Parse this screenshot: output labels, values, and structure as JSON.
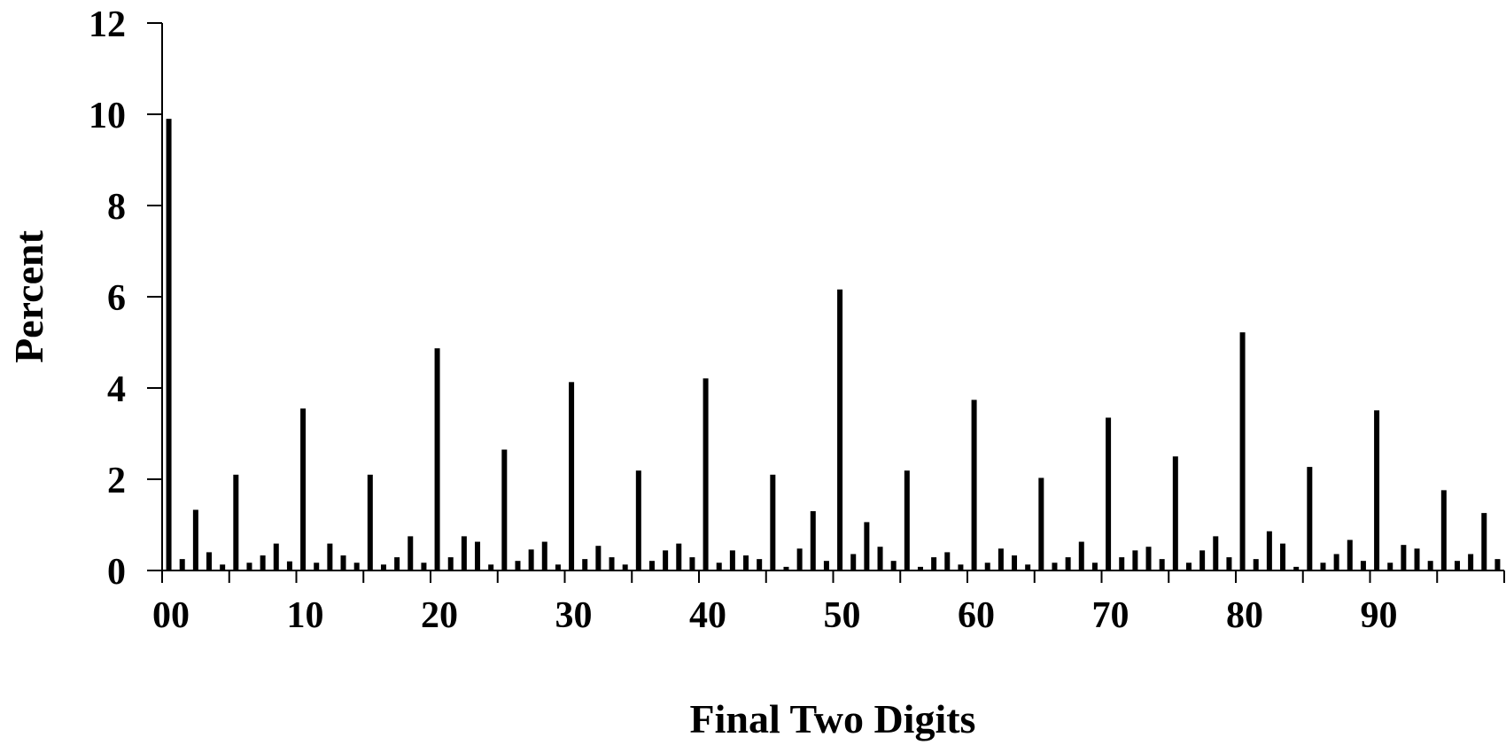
{
  "chart_data": {
    "type": "bar",
    "title": "",
    "xlabel": "Final Two Digits",
    "ylabel": "Percent",
    "ylim": [
      0,
      12
    ],
    "yticks": [
      "0",
      "2",
      "4",
      "6",
      "8",
      "10",
      "12"
    ],
    "xticks": [
      "00",
      "10",
      "20",
      "30",
      "40",
      "50",
      "60",
      "70",
      "80",
      "90"
    ],
    "grid": false,
    "bar_color": "#000000",
    "categories": [
      "00",
      "01",
      "02",
      "03",
      "04",
      "05",
      "06",
      "07",
      "08",
      "09",
      "10",
      "11",
      "12",
      "13",
      "14",
      "15",
      "16",
      "17",
      "18",
      "19",
      "20",
      "21",
      "22",
      "23",
      "24",
      "25",
      "26",
      "27",
      "28",
      "29",
      "30",
      "31",
      "32",
      "33",
      "34",
      "35",
      "36",
      "37",
      "38",
      "39",
      "40",
      "41",
      "42",
      "43",
      "44",
      "45",
      "46",
      "47",
      "48",
      "49",
      "50",
      "51",
      "52",
      "53",
      "54",
      "55",
      "56",
      "57",
      "58",
      "59",
      "60",
      "61",
      "62",
      "63",
      "64",
      "65",
      "66",
      "67",
      "68",
      "69",
      "70",
      "71",
      "72",
      "73",
      "74",
      "75",
      "76",
      "77",
      "78",
      "79",
      "80",
      "81",
      "82",
      "83",
      "84",
      "85",
      "86",
      "87",
      "88",
      "89",
      "90",
      "91",
      "92",
      "93",
      "94",
      "95",
      "96",
      "97",
      "98",
      "99"
    ],
    "values": [
      9.9,
      0.25,
      1.33,
      0.4,
      0.13,
      2.1,
      0.17,
      0.33,
      0.59,
      0.2,
      3.55,
      0.17,
      0.59,
      0.33,
      0.17,
      2.1,
      0.13,
      0.29,
      0.75,
      0.17,
      4.87,
      0.29,
      0.75,
      0.63,
      0.13,
      2.65,
      0.21,
      0.46,
      0.63,
      0.13,
      4.13,
      0.25,
      0.54,
      0.29,
      0.13,
      2.19,
      0.21,
      0.44,
      0.59,
      0.29,
      4.21,
      0.17,
      0.44,
      0.33,
      0.25,
      2.1,
      0.08,
      0.48,
      1.3,
      0.21,
      6.16,
      0.36,
      1.06,
      0.52,
      0.21,
      2.19,
      0.08,
      0.29,
      0.4,
      0.13,
      3.74,
      0.17,
      0.48,
      0.33,
      0.13,
      2.03,
      0.17,
      0.29,
      0.63,
      0.17,
      3.35,
      0.29,
      0.44,
      0.52,
      0.25,
      2.5,
      0.17,
      0.44,
      0.75,
      0.29,
      5.22,
      0.25,
      0.86,
      0.59,
      0.08,
      2.27,
      0.17,
      0.36,
      0.67,
      0.21,
      3.51,
      0.17,
      0.56,
      0.48,
      0.21,
      1.76,
      0.21,
      0.36,
      1.26,
      0.25
    ]
  }
}
